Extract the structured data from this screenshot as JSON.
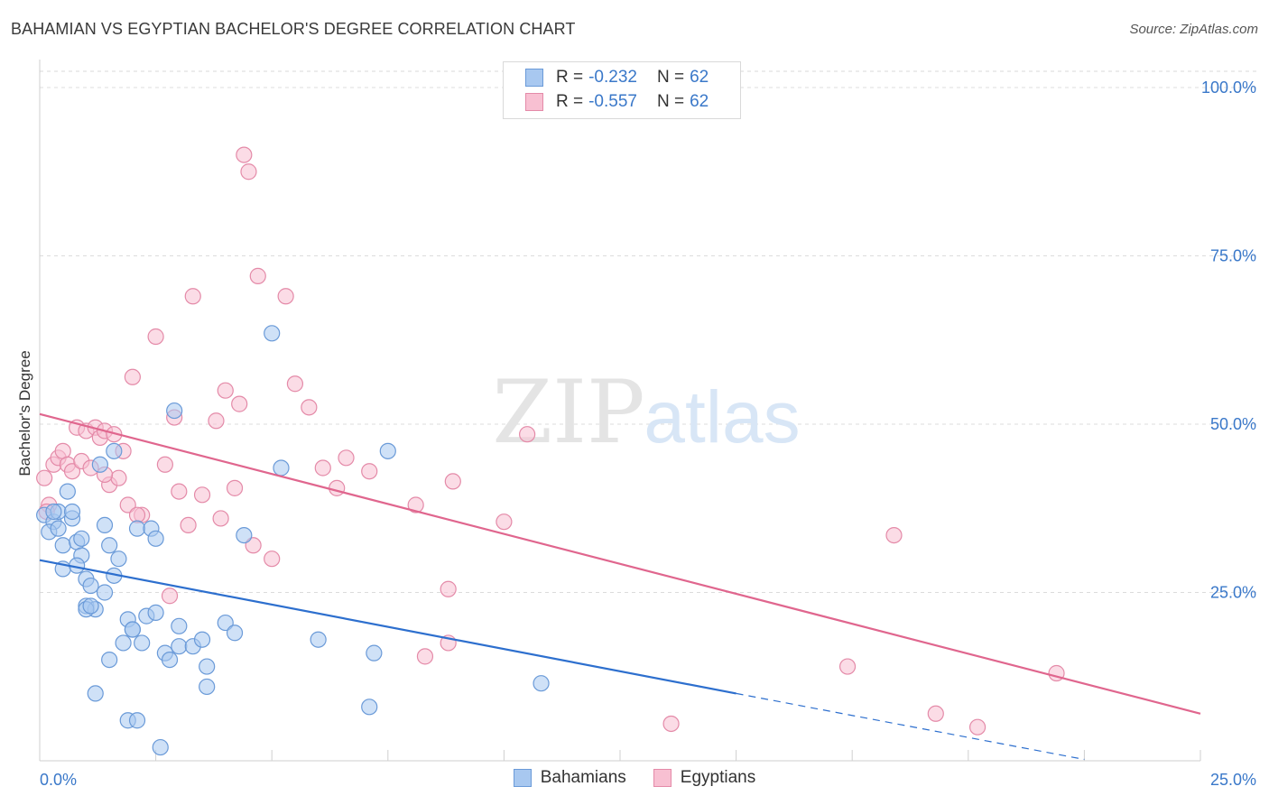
{
  "title": "BAHAMIAN VS EGYPTIAN BACHELOR'S DEGREE CORRELATION CHART",
  "source": "Source: ZipAtlas.com",
  "watermark": {
    "zip": "ZIP",
    "atlas": "atlas"
  },
  "legend": {
    "rows": [
      {
        "r_label": "R =",
        "r_value": "-0.232",
        "n_label": "N =",
        "n_value": "62",
        "color": "#a8c8f0",
        "border": "#6a9ad8"
      },
      {
        "r_label": "R =",
        "r_value": "-0.557",
        "n_label": "N =",
        "n_value": "62",
        "color": "#f8c0d2",
        "border": "#e48aa8"
      }
    ]
  },
  "chart_data": {
    "type": "scatter",
    "title": "BAHAMIAN VS EGYPTIAN BACHELOR'S DEGREE CORRELATION CHART",
    "xlabel": "",
    "ylabel": "Bachelor's Degree",
    "xlim": [
      0,
      25
    ],
    "ylim": [
      0,
      100
    ],
    "x_tick_labels": [
      {
        "value": 0,
        "label": "0.0%"
      },
      {
        "value": 25,
        "label": "25.0%"
      }
    ],
    "y_tick_labels": [
      {
        "value": 25,
        "label": "25.0%"
      },
      {
        "value": 50,
        "label": "50.0%"
      },
      {
        "value": 75,
        "label": "75.0%"
      },
      {
        "value": 100,
        "label": "100.0%"
      }
    ],
    "series": [
      {
        "name": "Bahamians",
        "color": "#6a9ad8",
        "fill": "#a8c8f0",
        "trend_color": "#2d6fce",
        "trend": {
          "x0": 0,
          "y0": 29.8,
          "x1": 15,
          "y1": 10.0,
          "dash_to_x": 22.5,
          "dash_to_y": 0.2
        },
        "points": [
          [
            0.1,
            36.5
          ],
          [
            0.3,
            35.5
          ],
          [
            0.4,
            37
          ],
          [
            0.2,
            34
          ],
          [
            0.5,
            32
          ],
          [
            0.6,
            40
          ],
          [
            0.7,
            36
          ],
          [
            0.8,
            32.5
          ],
          [
            0.9,
            33
          ],
          [
            1.0,
            27
          ],
          [
            0.5,
            28.5
          ],
          [
            0.9,
            30.5
          ],
          [
            0.3,
            37
          ],
          [
            1.0,
            23
          ],
          [
            1.1,
            26
          ],
          [
            1.2,
            22.5
          ],
          [
            1.3,
            44
          ],
          [
            1.4,
            25
          ],
          [
            1.4,
            35
          ],
          [
            1.5,
            32
          ],
          [
            1.6,
            46
          ],
          [
            1.7,
            30
          ],
          [
            1.9,
            21
          ],
          [
            1.5,
            15
          ],
          [
            1.2,
            10
          ],
          [
            1.8,
            17.5
          ],
          [
            2.0,
            19.5
          ],
          [
            2.1,
            34.5
          ],
          [
            2.2,
            17.5
          ],
          [
            2.3,
            21.5
          ],
          [
            2.4,
            34.5
          ],
          [
            2.5,
            33
          ],
          [
            2.5,
            22
          ],
          [
            2.7,
            16
          ],
          [
            2.9,
            52
          ],
          [
            3.0,
            20
          ],
          [
            3.0,
            17
          ],
          [
            3.3,
            17
          ],
          [
            3.5,
            18
          ],
          [
            3.6,
            14
          ],
          [
            3.6,
            11
          ],
          [
            4.0,
            20.5
          ],
          [
            4.2,
            19
          ],
          [
            4.4,
            33.5
          ],
          [
            5.0,
            63.5
          ],
          [
            5.2,
            43.5
          ],
          [
            6.0,
            18
          ],
          [
            7.1,
            8
          ],
          [
            7.2,
            16
          ],
          [
            7.5,
            46
          ],
          [
            10.8,
            11.5
          ],
          [
            1.9,
            6
          ],
          [
            2.1,
            6
          ],
          [
            2.6,
            2
          ],
          [
            1.0,
            22.5
          ],
          [
            0.7,
            37
          ],
          [
            0.4,
            34.5
          ],
          [
            2.0,
            19.5
          ],
          [
            1.6,
            27.5
          ],
          [
            0.8,
            29
          ],
          [
            1.1,
            23
          ],
          [
            2.8,
            15
          ]
        ]
      },
      {
        "name": "Egyptians",
        "color": "#e48aa8",
        "fill": "#f8c0d2",
        "trend_color": "#e0668e",
        "trend": {
          "x0": 0,
          "y0": 51.5,
          "x1": 25,
          "y1": 7.0
        },
        "points": [
          [
            0.1,
            42
          ],
          [
            0.2,
            38
          ],
          [
            0.3,
            44
          ],
          [
            0.4,
            45
          ],
          [
            0.5,
            46
          ],
          [
            0.6,
            44
          ],
          [
            0.7,
            43
          ],
          [
            0.8,
            49.5
          ],
          [
            0.9,
            44.5
          ],
          [
            1.0,
            49
          ],
          [
            1.1,
            43.5
          ],
          [
            1.2,
            49.5
          ],
          [
            1.3,
            48
          ],
          [
            1.4,
            49
          ],
          [
            1.5,
            41
          ],
          [
            1.6,
            48.5
          ],
          [
            1.7,
            42
          ],
          [
            1.8,
            46
          ],
          [
            1.9,
            38
          ],
          [
            2.0,
            57
          ],
          [
            2.2,
            36.5
          ],
          [
            2.5,
            63
          ],
          [
            2.7,
            44
          ],
          [
            2.8,
            24.5
          ],
          [
            2.9,
            51
          ],
          [
            3.0,
            40
          ],
          [
            3.2,
            35
          ],
          [
            3.3,
            69
          ],
          [
            3.5,
            39.5
          ],
          [
            3.8,
            50.5
          ],
          [
            3.9,
            36
          ],
          [
            4.0,
            55
          ],
          [
            4.2,
            40.5
          ],
          [
            4.3,
            53
          ],
          [
            4.5,
            87.5
          ],
          [
            4.4,
            90
          ],
          [
            4.6,
            32
          ],
          [
            4.7,
            72
          ],
          [
            5.0,
            30
          ],
          [
            5.3,
            69
          ],
          [
            5.5,
            56
          ],
          [
            5.8,
            52.5
          ],
          [
            6.1,
            43.5
          ],
          [
            6.4,
            40.5
          ],
          [
            6.6,
            45
          ],
          [
            7.1,
            43
          ],
          [
            8.1,
            38
          ],
          [
            8.3,
            15.5
          ],
          [
            8.8,
            17.5
          ],
          [
            8.8,
            25.5
          ],
          [
            8.9,
            41.5
          ],
          [
            10.0,
            35.5
          ],
          [
            10.5,
            48.5
          ],
          [
            13.6,
            5.5
          ],
          [
            17.4,
            14
          ],
          [
            18.4,
            33.5
          ],
          [
            19.3,
            7
          ],
          [
            20.2,
            5
          ],
          [
            21.9,
            13
          ],
          [
            0.15,
            37
          ],
          [
            2.1,
            36.5
          ],
          [
            1.4,
            42.5
          ]
        ]
      }
    ],
    "bottom_legend": [
      "Bahamians",
      "Egyptians"
    ]
  }
}
